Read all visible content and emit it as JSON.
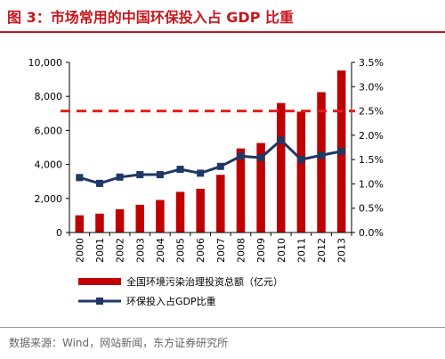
{
  "title": "图 3：市场常用的中国环保投入占 GDP 比重",
  "source": "数据来源：Wind，网站新闻，东方证券研究所",
  "colors": {
    "bar": "#c00000",
    "line": "#1f3864",
    "reference": "#e02020",
    "title": "#c8161d"
  },
  "chart_data": {
    "type": "bar",
    "categories": [
      "2000",
      "2001",
      "2002",
      "2003",
      "2004",
      "2005",
      "2006",
      "2007",
      "2008",
      "2009",
      "2010",
      "2011",
      "2012",
      "2013"
    ],
    "series": [
      {
        "name": "全国环境污染治理投资总额（亿元）",
        "type": "bar",
        "axis": "left",
        "values": [
          1010,
          1110,
          1370,
          1630,
          1910,
          2390,
          2570,
          3390,
          4940,
          5260,
          7610,
          7100,
          8250,
          9520
        ]
      },
      {
        "name": "环保投入占GDP比重",
        "type": "line",
        "axis": "right",
        "values": [
          1.13,
          1.01,
          1.14,
          1.19,
          1.19,
          1.3,
          1.22,
          1.36,
          1.57,
          1.54,
          1.9,
          1.5,
          1.59,
          1.67
        ]
      }
    ],
    "reference_line": {
      "axis": "right",
      "value": 2.5,
      "style": "dashed"
    },
    "y_left": {
      "min": 0,
      "max": 10000,
      "ticks": [
        "0",
        "2,000",
        "4,000",
        "6,000",
        "8,000",
        "10,000"
      ]
    },
    "y_right": {
      "min": 0,
      "max": 3.5,
      "ticks": [
        "0.0%",
        "0.5%",
        "1.0%",
        "1.5%",
        "2.0%",
        "2.5%",
        "3.0%",
        "3.5%"
      ]
    },
    "grid": false,
    "legend_position": "bottom-left"
  }
}
